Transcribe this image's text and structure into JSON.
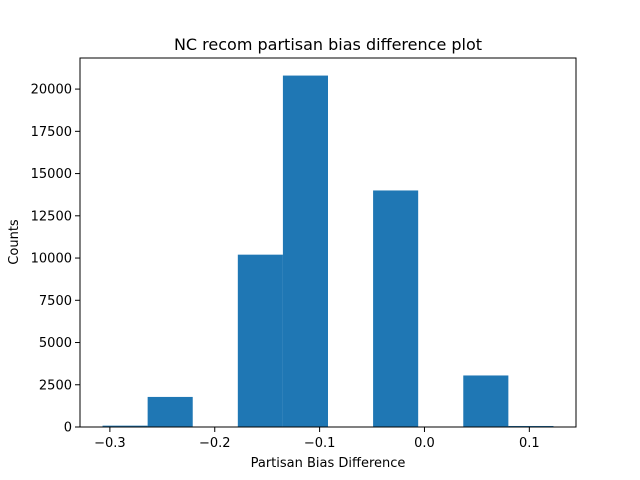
{
  "chart_data": {
    "type": "bar",
    "title": "NC recom partisan bias difference plot",
    "xlabel": "Partisan Bias Difference",
    "ylabel": "Counts",
    "bin_edges": [
      -0.307,
      -0.264,
      -0.221,
      -0.178,
      -0.135,
      -0.092,
      -0.049,
      -0.006,
      0.037,
      0.08,
      0.123
    ],
    "values": [
      80,
      1780,
      0,
      10200,
      20800,
      0,
      14000,
      0,
      3050,
      60
    ],
    "color": "#1f77b4",
    "xlim": [
      -0.3285,
      0.1445
    ],
    "ylim": [
      0,
      21840
    ],
    "x_ticks": [
      -0.3,
      -0.2,
      -0.1,
      0.0,
      0.1
    ],
    "x_tick_labels": [
      "−0.3",
      "−0.2",
      "−0.1",
      "0.0",
      "0.1"
    ],
    "y_ticks": [
      0,
      2500,
      5000,
      7500,
      10000,
      12500,
      15000,
      17500,
      20000
    ],
    "y_tick_labels": [
      "0",
      "2500",
      "5000",
      "7500",
      "10000",
      "12500",
      "15000",
      "17500",
      "20000"
    ],
    "grid": false,
    "legend": "none"
  }
}
